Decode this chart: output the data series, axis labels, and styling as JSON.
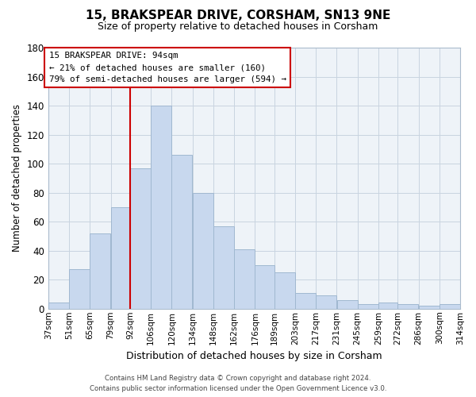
{
  "title": "15, BRAKSPEAR DRIVE, CORSHAM, SN13 9NE",
  "subtitle": "Size of property relative to detached houses in Corsham",
  "xlabel": "Distribution of detached houses by size in Corsham",
  "ylabel": "Number of detached properties",
  "bar_color": "#c8d8ee",
  "bar_edge_color": "#a0b8d0",
  "vline_x": 92,
  "vline_color": "#cc0000",
  "bins": [
    37,
    51,
    65,
    79,
    92,
    106,
    120,
    134,
    148,
    162,
    176,
    189,
    203,
    217,
    231,
    245,
    259,
    272,
    286,
    300,
    314
  ],
  "bin_labels": [
    "37sqm",
    "51sqm",
    "65sqm",
    "79sqm",
    "92sqm",
    "106sqm",
    "120sqm",
    "134sqm",
    "148sqm",
    "162sqm",
    "176sqm",
    "189sqm",
    "203sqm",
    "217sqm",
    "231sqm",
    "245sqm",
    "259sqm",
    "272sqm",
    "286sqm",
    "300sqm",
    "314sqm"
  ],
  "values": [
    4,
    27,
    52,
    70,
    97,
    140,
    106,
    80,
    57,
    41,
    30,
    25,
    11,
    9,
    6,
    3,
    4,
    3,
    2,
    3
  ],
  "ylim": [
    0,
    180
  ],
  "yticks": [
    0,
    20,
    40,
    60,
    80,
    100,
    120,
    140,
    160,
    180
  ],
  "ann_line1": "15 BRAKSPEAR DRIVE: 94sqm",
  "ann_line2": "← 21% of detached houses are smaller (160)",
  "ann_line3": "79% of semi-detached houses are larger (594) →",
  "footer_line1": "Contains HM Land Registry data © Crown copyright and database right 2024.",
  "footer_line2": "Contains public sector information licensed under the Open Government Licence v3.0.",
  "background_color": "#ffffff",
  "plot_bg_color": "#eef3f8",
  "grid_color": "#c8d4e0"
}
